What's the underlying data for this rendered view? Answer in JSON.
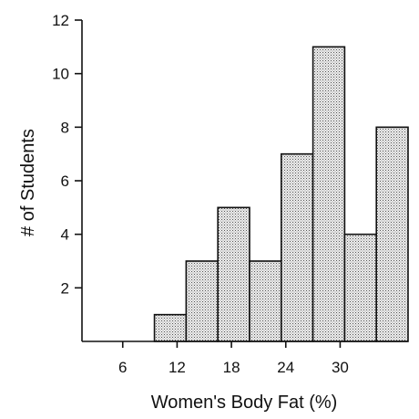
{
  "chart_data": {
    "type": "bar",
    "title": "",
    "xlabel": "Women's Body Fat (%)",
    "ylabel": "# of Students",
    "bin_width": 3.5,
    "bins": [
      {
        "start": 9.5,
        "end": 13.0,
        "count": 1
      },
      {
        "start": 13.0,
        "end": 16.5,
        "count": 3
      },
      {
        "start": 16.5,
        "end": 20.0,
        "count": 5
      },
      {
        "start": 20.0,
        "end": 23.5,
        "count": 3
      },
      {
        "start": 23.5,
        "end": 27.0,
        "count": 7
      },
      {
        "start": 27.0,
        "end": 30.5,
        "count": 11
      },
      {
        "start": 30.5,
        "end": 34.0,
        "count": 4
      },
      {
        "start": 34.0,
        "end": 37.5,
        "count": 8
      }
    ],
    "xlim": [
      1.5,
      37.5
    ],
    "ylim": [
      0,
      12
    ],
    "x_ticks": [
      6,
      12,
      18,
      24,
      30
    ],
    "x_tick_labels": [
      "6",
      "12",
      "18",
      "24",
      "30"
    ],
    "y_ticks": [
      2,
      4,
      6,
      8,
      10,
      12
    ],
    "y_tick_labels": [
      "2",
      "4",
      "6",
      "8",
      "10",
      "12"
    ],
    "grid": false,
    "fill_pattern": "stippled gray"
  }
}
